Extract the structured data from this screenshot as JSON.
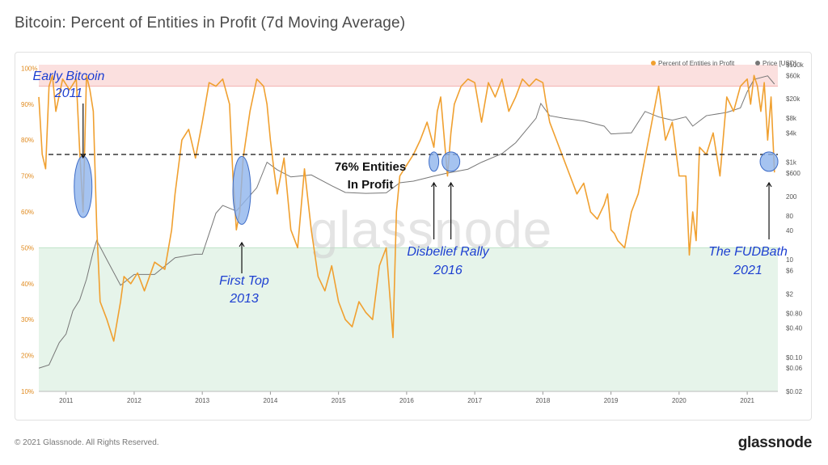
{
  "header": {
    "title": "Bitcoin: Percent of Entities in Profit (7d Moving Average)"
  },
  "footer": {
    "copyright": "© 2021 Glassnode. All Rights Reserved.",
    "logo": "glassnode"
  },
  "watermark": "glassnode",
  "colors": {
    "profit": "#f0a030",
    "price": "#777777",
    "red_zone": "#fbe0df",
    "green_zone": "#e6f4ea",
    "annotation": "#1d3fd1",
    "marker_fill": "#8fb4ec"
  },
  "chart_data": {
    "type": "line",
    "title": "Bitcoin: Percent of Entities in Profit (7d Moving Average)",
    "x_ticks": [
      "2011",
      "2012",
      "2013",
      "2014",
      "2015",
      "2016",
      "2017",
      "2018",
      "2019",
      "2020",
      "2021"
    ],
    "x_range": [
      2010.6,
      2021.45
    ],
    "y_left_ticks": [
      "100%",
      "90%",
      "80%",
      "70%",
      "60%",
      "50%",
      "40%",
      "30%",
      "20%",
      "10%"
    ],
    "y_left_range": [
      10,
      101
    ],
    "y_right_ticks": [
      "$100k",
      "$60k",
      "$20k",
      "$8k",
      "$4k",
      "$1k",
      "$600",
      "200",
      "80",
      "40",
      "10",
      "$6",
      "$2",
      "$0.80",
      "$0.40",
      "$0.10",
      "$0.06",
      "$0.02"
    ],
    "y_right_log": true,
    "y_right_range": [
      0.02,
      100000
    ],
    "legend": {
      "position": "top-right",
      "items": [
        "Percent of Entities in Profit",
        "Price [USD]"
      ]
    },
    "bands": [
      {
        "name": "red",
        "from": 95,
        "to": 101
      },
      {
        "name": "green",
        "from": 10,
        "to": 50
      }
    ],
    "threshold": 76,
    "series": [
      {
        "name": "Percent of Entities in Profit",
        "axis": "left",
        "x": [
          2010.6,
          2010.65,
          2010.7,
          2010.75,
          2010.8,
          2010.85,
          2010.95,
          2011.05,
          2011.15,
          2011.2,
          2011.25,
          2011.3,
          2011.35,
          2011.4,
          2011.45,
          2011.5,
          2011.6,
          2011.7,
          2011.8,
          2011.85,
          2011.95,
          2012.05,
          2012.15,
          2012.3,
          2012.45,
          2012.55,
          2012.6,
          2012.7,
          2012.8,
          2012.9,
          2013.0,
          2013.1,
          2013.2,
          2013.3,
          2013.4,
          2013.45,
          2013.5,
          2013.55,
          2013.6,
          2013.7,
          2013.8,
          2013.9,
          2013.95,
          2014.0,
          2014.05,
          2014.1,
          2014.2,
          2014.3,
          2014.4,
          2014.5,
          2014.6,
          2014.7,
          2014.8,
          2014.9,
          2015.0,
          2015.1,
          2015.2,
          2015.3,
          2015.4,
          2015.5,
          2015.6,
          2015.7,
          2015.8,
          2015.85,
          2015.9,
          2016.0,
          2016.1,
          2016.2,
          2016.3,
          2016.4,
          2016.45,
          2016.5,
          2016.6,
          2016.65,
          2016.7,
          2016.8,
          2016.9,
          2017.0,
          2017.1,
          2017.2,
          2017.3,
          2017.4,
          2017.5,
          2017.6,
          2017.7,
          2017.8,
          2017.9,
          2018.0,
          2018.05,
          2018.1,
          2018.2,
          2018.3,
          2018.4,
          2018.5,
          2018.6,
          2018.7,
          2018.8,
          2018.9,
          2018.95,
          2019.0,
          2019.05,
          2019.1,
          2019.2,
          2019.3,
          2019.4,
          2019.5,
          2019.6,
          2019.7,
          2019.8,
          2019.9,
          2020.0,
          2020.1,
          2020.15,
          2020.2,
          2020.25,
          2020.3,
          2020.4,
          2020.5,
          2020.6,
          2020.7,
          2020.8,
          2020.9,
          2021.0,
          2021.05,
          2021.1,
          2021.15,
          2021.2,
          2021.25,
          2021.3,
          2021.35,
          2021.4
        ],
        "values": [
          92,
          76,
          72,
          95,
          98,
          88,
          97,
          94,
          97,
          77,
          60,
          98,
          94,
          88,
          56,
          35,
          30,
          24,
          35,
          42,
          40,
          43,
          38,
          46,
          44,
          55,
          65,
          80,
          83,
          75,
          85,
          96,
          95,
          97,
          90,
          70,
          55,
          60,
          75,
          88,
          97,
          95,
          90,
          80,
          72,
          65,
          75,
          55,
          50,
          72,
          55,
          42,
          38,
          45,
          35,
          30,
          28,
          35,
          32,
          30,
          45,
          50,
          25,
          60,
          70,
          73,
          76,
          80,
          85,
          78,
          88,
          92,
          70,
          82,
          90,
          95,
          97,
          96,
          85,
          96,
          92,
          97,
          88,
          92,
          97,
          95,
          97,
          96,
          90,
          85,
          80,
          75,
          70,
          65,
          68,
          60,
          58,
          62,
          65,
          55,
          54,
          52,
          50,
          60,
          65,
          75,
          85,
          95,
          80,
          85,
          70,
          70,
          48,
          60,
          52,
          78,
          76,
          82,
          70,
          92,
          88,
          95,
          97,
          90,
          98,
          95,
          88,
          96,
          80,
          92,
          71
        ]
      },
      {
        "name": "Price [USD]",
        "axis": "right",
        "x": [
          2010.6,
          2010.75,
          2010.9,
          2011.0,
          2011.1,
          2011.2,
          2011.3,
          2011.4,
          2011.45,
          2011.6,
          2011.8,
          2012.0,
          2012.3,
          2012.6,
          2012.9,
          2013.0,
          2013.2,
          2013.3,
          2013.5,
          2013.8,
          2013.95,
          2014.1,
          2014.3,
          2014.6,
          2014.9,
          2015.1,
          2015.4,
          2015.7,
          2015.9,
          2016.1,
          2016.4,
          2016.6,
          2016.9,
          2017.1,
          2017.4,
          2017.6,
          2017.9,
          2017.97,
          2018.1,
          2018.3,
          2018.6,
          2018.9,
          2019.0,
          2019.3,
          2019.5,
          2019.7,
          2019.9,
          2020.1,
          2020.2,
          2020.4,
          2020.7,
          2020.9,
          2021.0,
          2021.1,
          2021.3,
          2021.4
        ],
        "values": [
          0.06,
          0.07,
          0.2,
          0.3,
          0.9,
          1.5,
          4,
          15,
          25,
          10,
          3,
          5,
          5,
          11,
          13,
          13,
          90,
          130,
          100,
          300,
          1000,
          700,
          500,
          550,
          330,
          240,
          230,
          235,
          380,
          410,
          520,
          600,
          720,
          1000,
          1500,
          2500,
          8000,
          16000,
          9000,
          8000,
          7000,
          5500,
          3800,
          4000,
          11000,
          8500,
          7300,
          8500,
          5500,
          9000,
          10500,
          13000,
          28000,
          50000,
          59000,
          40000
        ]
      }
    ],
    "annotations": [
      {
        "text": "Early Bitcoin",
        "text2": "2011"
      },
      {
        "text": "First Top",
        "text2": "2013"
      },
      {
        "text": "Disbelief Rally",
        "text2": "2016"
      },
      {
        "text": "The FUDBath",
        "text2": "2021"
      },
      {
        "text": "76% Entities",
        "text2": "In Profit"
      }
    ]
  }
}
